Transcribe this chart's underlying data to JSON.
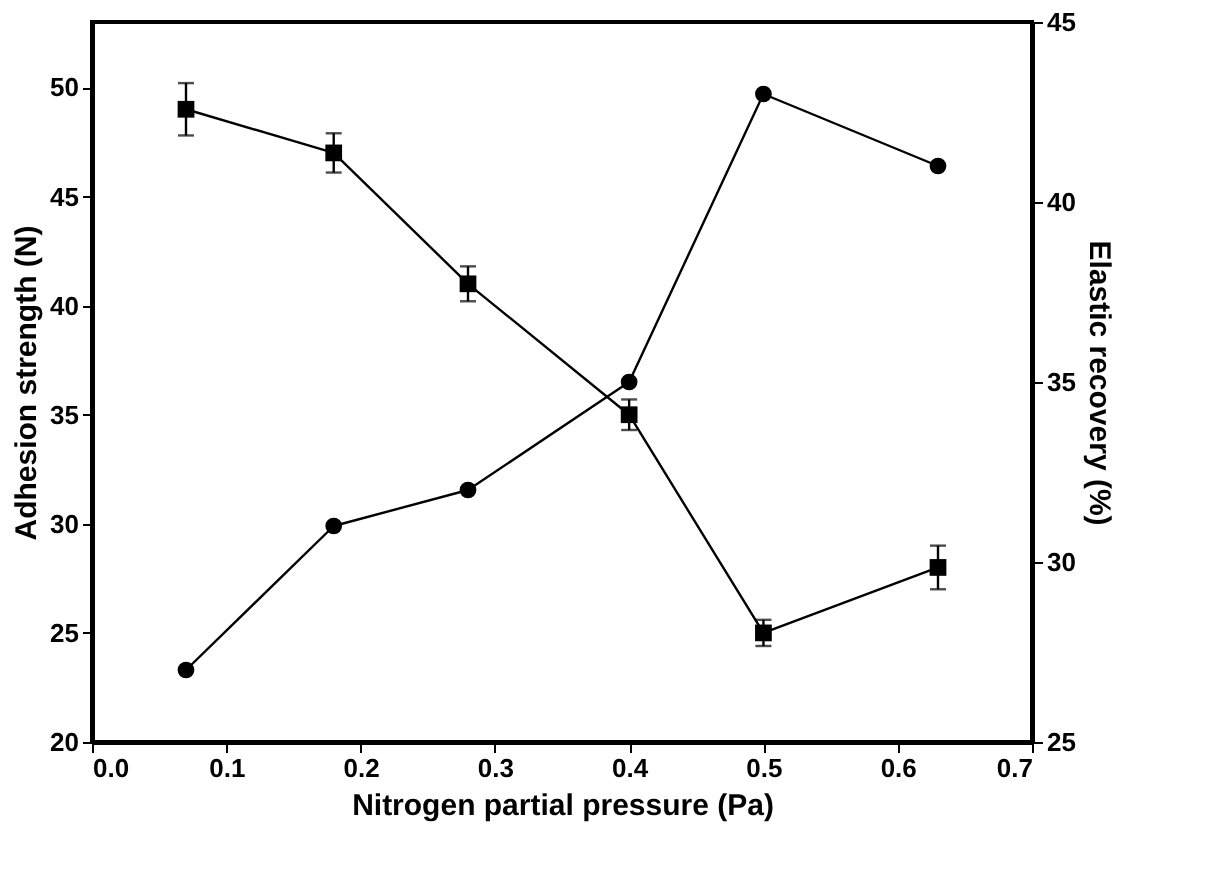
{
  "chart_data": {
    "type": "line",
    "xlabel": "Nitrogen partial pressure (Pa)",
    "ylabel": "Adhesion strength (N)",
    "y2label": "Elastic recovery (%)",
    "x": [
      0.07,
      0.18,
      0.28,
      0.4,
      0.5,
      0.63
    ],
    "xlim": [
      0.0,
      0.7
    ],
    "xticks": [
      {
        "value": 0.0,
        "label": "0.0"
      },
      0.1,
      0.2,
      0.3,
      0.4,
      0.5,
      0.6,
      0.7
    ],
    "ylim": [
      20,
      53
    ],
    "yticks": [
      20,
      25,
      30,
      35,
      40,
      45,
      50
    ],
    "y2lim": [
      25,
      45
    ],
    "y2ticks": [
      25,
      30,
      35,
      40,
      45
    ],
    "grid": false,
    "series": [
      {
        "color": "#000000",
        "marker": "square",
        "values": [
          49,
          47,
          41,
          35,
          25,
          28
        ],
        "errors": [
          1.2,
          0.9,
          0.8,
          0.7,
          0.6,
          1.0
        ]
      },
      {
        "color": "#000000",
        "marker": "circle",
        "axis": "y2",
        "values": [
          27,
          31,
          32,
          35,
          43,
          41
        ]
      }
    ]
  }
}
